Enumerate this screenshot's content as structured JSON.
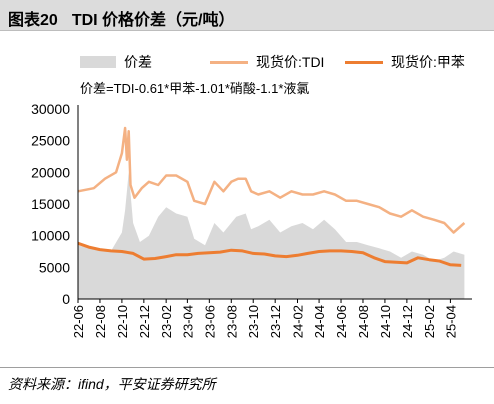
{
  "header": {
    "title_number": "图表20",
    "title_text": "TDI 价格价差（元/吨）"
  },
  "legend": [
    {
      "label": "价差",
      "color": "#d9d9d9"
    },
    {
      "label": "现货价:TDI",
      "color": "#f4b183"
    },
    {
      "label": "现货价:甲苯",
      "color": "#ed7d31"
    }
  ],
  "formula": "价差=TDI-0.61*甲苯-1.01*硝酸-1.1*液氯",
  "footer": {
    "source": "资料来源：ifind，平安证券研究所"
  },
  "chart_data": {
    "type": "line",
    "x_tick_labels": [
      "22-06",
      "22-08",
      "22-10",
      "22-12",
      "23-02",
      "23-04",
      "23-06",
      "23-08",
      "23-10",
      "23-12",
      "24-02",
      "24-04",
      "24-06",
      "24-08",
      "24-10",
      "24-12",
      "25-02",
      "25-04"
    ],
    "y_tick_labels": [
      "0",
      "5000",
      "10000",
      "15000",
      "20000",
      "25000",
      "30000"
    ],
    "ylim": [
      0,
      30000
    ],
    "grid": false,
    "legend_position": "top",
    "series": [
      {
        "name": "价差",
        "type": "area",
        "color": "#d9d9d9",
        "x": [
          "2022-06-01",
          "2022-07-15",
          "2022-09-01",
          "2022-10-01",
          "2022-10-10",
          "2022-10-20",
          "2022-11-01",
          "2022-11-20",
          "2022-12-15",
          "2023-01-10",
          "2023-02-01",
          "2023-03-01",
          "2023-04-01",
          "2023-04-20",
          "2023-05-20",
          "2023-06-15",
          "2023-07-10",
          "2023-08-15",
          "2023-09-10",
          "2023-09-25",
          "2023-10-15",
          "2023-11-15",
          "2023-12-15",
          "2024-01-15",
          "2024-02-15",
          "2024-03-15",
          "2024-04-15",
          "2024-05-15",
          "2024-06-15",
          "2024-07-15",
          "2024-08-15",
          "2024-09-15",
          "2024-10-15",
          "2024-11-15",
          "2024-12-15",
          "2025-01-15",
          "2025-02-15",
          "2025-03-15",
          "2025-04-10",
          "2025-05-10"
        ],
        "values": [
          8500,
          7800,
          7600,
          10500,
          14000,
          20000,
          12000,
          9000,
          10000,
          13000,
          14500,
          13500,
          13000,
          9500,
          8500,
          12000,
          10500,
          13000,
          13500,
          11000,
          11500,
          12500,
          10500,
          11500,
          12000,
          11000,
          12500,
          11000,
          9000,
          9000,
          8500,
          8000,
          7500,
          6500,
          7500,
          7000,
          6000,
          6500,
          7500,
          7000
        ]
      },
      {
        "name": "现货价:TDI",
        "type": "line",
        "color": "#f4b183",
        "x": [
          "2022-06-01",
          "2022-07-15",
          "2022-08-15",
          "2022-09-15",
          "2022-10-01",
          "2022-10-10",
          "2022-10-15",
          "2022-10-20",
          "2022-10-25",
          "2022-11-05",
          "2022-11-25",
          "2022-12-15",
          "2023-01-10",
          "2023-02-01",
          "2023-03-01",
          "2023-04-01",
          "2023-04-20",
          "2023-05-20",
          "2023-06-15",
          "2023-07-10",
          "2023-08-01",
          "2023-08-20",
          "2023-09-10",
          "2023-09-25",
          "2023-10-15",
          "2023-11-15",
          "2023-12-15",
          "2024-01-15",
          "2024-02-15",
          "2024-03-15",
          "2024-04-15",
          "2024-05-15",
          "2024-06-15",
          "2024-07-15",
          "2024-08-15",
          "2024-09-15",
          "2024-10-15",
          "2024-11-15",
          "2024-12-15",
          "2025-01-15",
          "2025-02-15",
          "2025-03-15",
          "2025-04-10",
          "2025-05-10"
        ],
        "values": [
          17000,
          17500,
          19000,
          20000,
          23000,
          27000,
          22000,
          26500,
          18000,
          16000,
          17500,
          18500,
          18000,
          19500,
          19500,
          18500,
          15500,
          15000,
          18500,
          17000,
          18500,
          19000,
          19000,
          17000,
          16500,
          17000,
          16000,
          17000,
          16500,
          16500,
          17000,
          16500,
          15500,
          15500,
          15000,
          14500,
          13500,
          13000,
          14000,
          13000,
          12500,
          12000,
          10500,
          12000
        ]
      },
      {
        "name": "现货价:甲苯",
        "type": "line",
        "color": "#ed7d31",
        "x": [
          "2022-06-01",
          "2022-07-01",
          "2022-08-01",
          "2022-09-01",
          "2022-10-01",
          "2022-11-01",
          "2022-12-01",
          "2023-01-01",
          "2023-02-01",
          "2023-03-01",
          "2023-04-01",
          "2023-05-01",
          "2023-06-01",
          "2023-07-01",
          "2023-08-01",
          "2023-09-01",
          "2023-10-01",
          "2023-11-01",
          "2023-12-01",
          "2024-01-01",
          "2024-02-01",
          "2024-03-01",
          "2024-04-01",
          "2024-05-01",
          "2024-06-01",
          "2024-07-01",
          "2024-08-01",
          "2024-09-01",
          "2024-10-01",
          "2024-11-01",
          "2024-12-01",
          "2025-01-01",
          "2025-02-01",
          "2025-03-01",
          "2025-04-01",
          "2025-05-01"
        ],
        "values": [
          8800,
          8200,
          7800,
          7600,
          7500,
          7200,
          6300,
          6400,
          6700,
          7000,
          7000,
          7200,
          7300,
          7400,
          7700,
          7600,
          7200,
          7100,
          6800,
          6700,
          6900,
          7200,
          7500,
          7600,
          7600,
          7500,
          7300,
          6500,
          5900,
          5800,
          5700,
          6500,
          6200,
          6000,
          5400,
          5300
        ]
      }
    ]
  }
}
